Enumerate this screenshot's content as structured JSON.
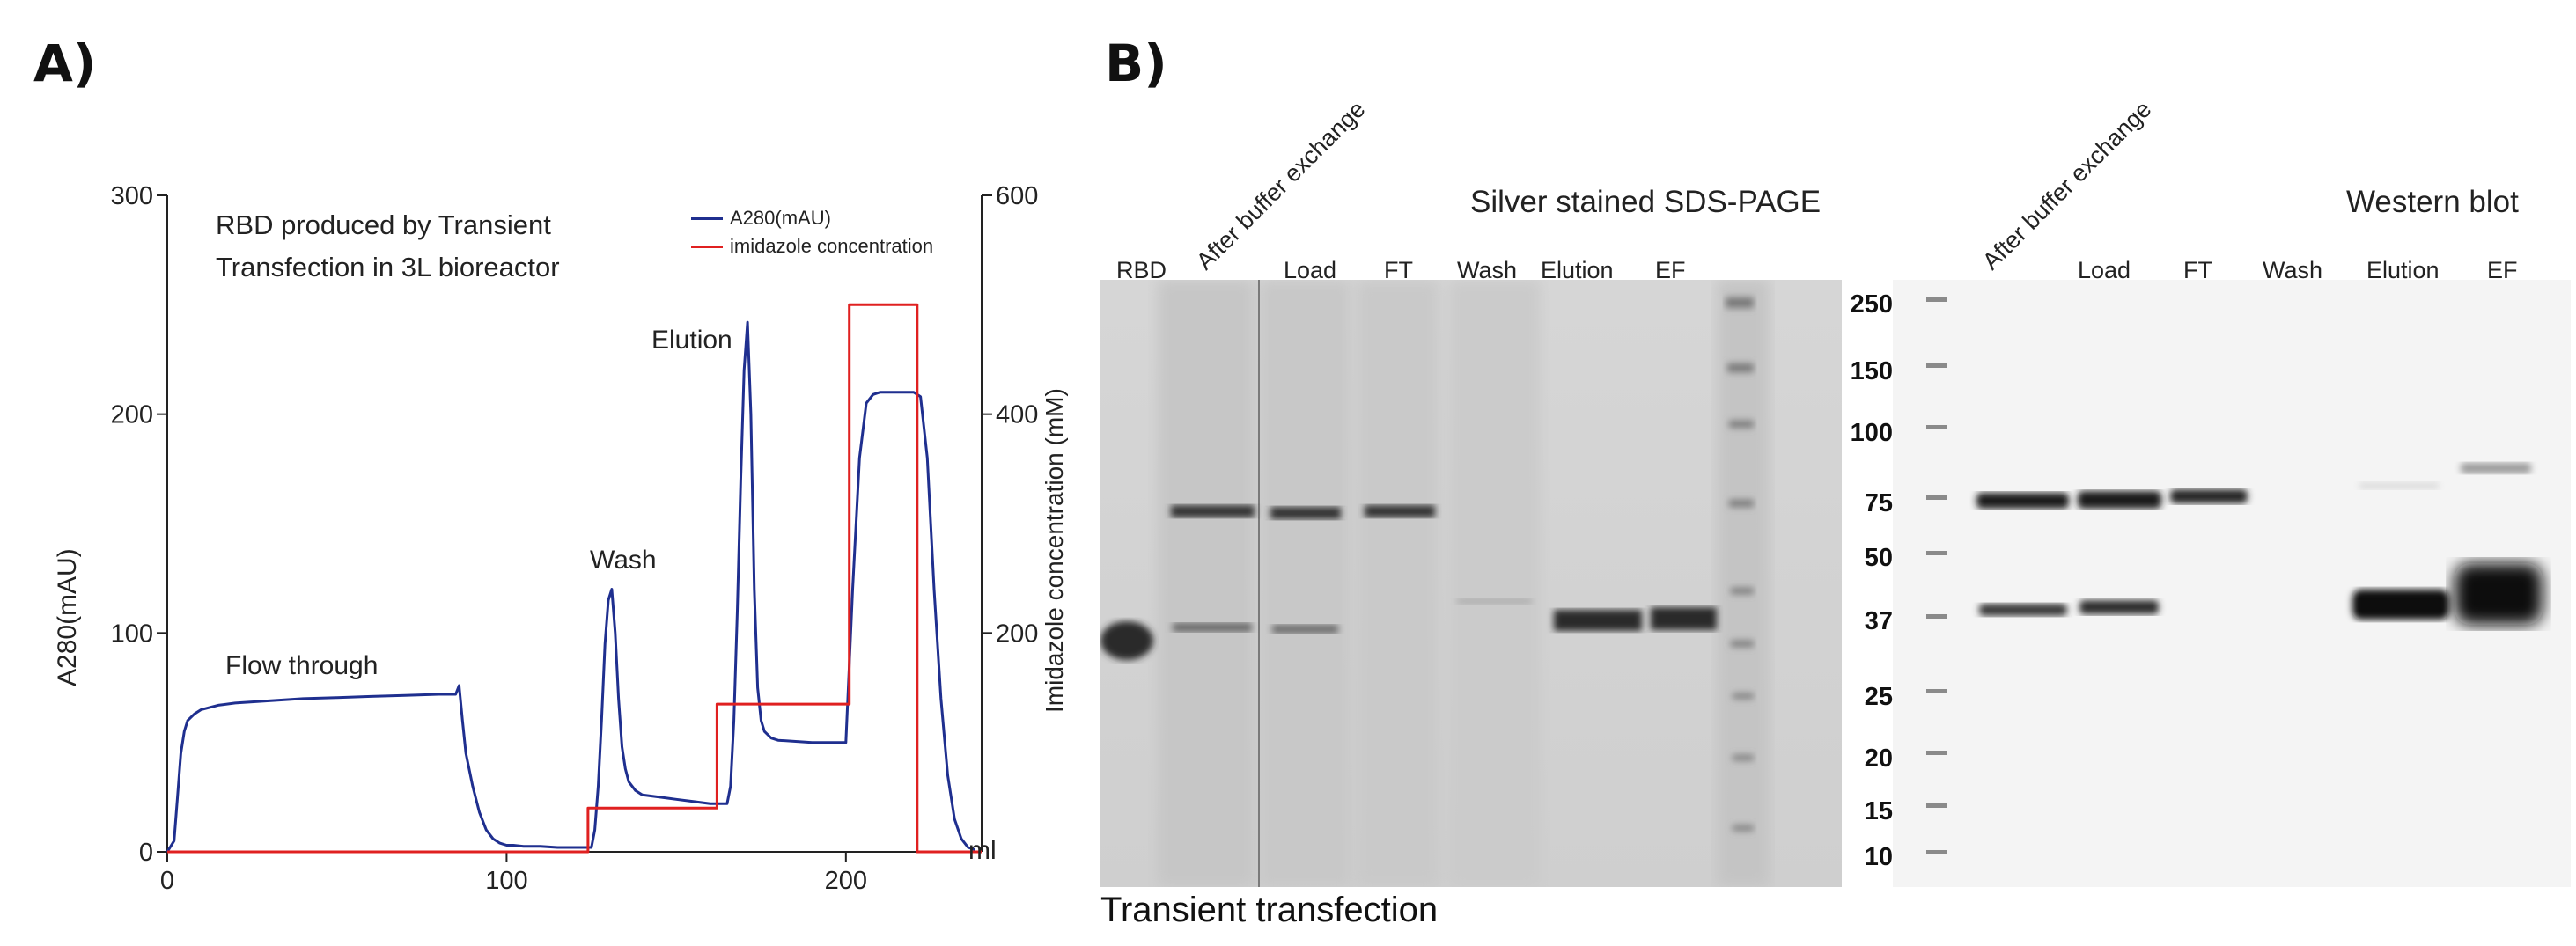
{
  "panelA": {
    "letter": "A)",
    "note_line1": "RBD produced by Transient",
    "note_line2": "Transfection in 3L bioreactor",
    "annotations": {
      "flow_through": "Flow through",
      "wash": "Wash",
      "elution": "Elution"
    }
  },
  "chart_data": {
    "type": "line",
    "xlabel": "ml",
    "ylabel_left": "A280(mAU)",
    "ylabel_right": "Imidazole concentration (mM)",
    "xlim": [
      0,
      240
    ],
    "ylim_left": [
      0,
      300
    ],
    "ylim_right": [
      0,
      600
    ],
    "xticks": [
      0,
      100,
      200
    ],
    "yticks_left": [
      0,
      100,
      200,
      300
    ],
    "yticks_right": [
      200,
      400,
      600
    ],
    "legend_position": "top-right",
    "series": [
      {
        "name": "A280(mAU)",
        "axis": "left",
        "color": "#1f2f8f",
        "x": [
          0,
          2,
          3,
          4,
          5,
          6,
          8,
          10,
          15,
          20,
          30,
          40,
          50,
          60,
          70,
          80,
          85,
          86,
          87,
          88,
          90,
          92,
          94,
          96,
          98,
          100,
          102,
          105,
          110,
          115,
          120,
          125,
          126,
          127,
          128,
          129,
          130,
          131,
          132,
          133,
          134,
          135,
          136,
          138,
          140,
          145,
          150,
          155,
          160,
          165,
          166,
          167,
          168,
          169,
          170,
          171,
          172,
          173,
          174,
          175,
          176,
          178,
          180,
          190,
          200,
          202,
          204,
          206,
          208,
          210,
          212,
          215,
          220,
          222,
          224,
          226,
          228,
          230,
          232,
          234,
          236,
          238
        ],
        "y": [
          0,
          5,
          25,
          45,
          55,
          60,
          63,
          65,
          67,
          68,
          69,
          70,
          70.5,
          71,
          71.5,
          72,
          72,
          76,
          60,
          45,
          30,
          18,
          10,
          6,
          4,
          3,
          3,
          2.5,
          2.5,
          2,
          2,
          2,
          10,
          30,
          60,
          95,
          115,
          120,
          100,
          70,
          48,
          38,
          32,
          28,
          26,
          25,
          24,
          23,
          22,
          22,
          30,
          60,
          110,
          170,
          220,
          242,
          200,
          120,
          75,
          60,
          55,
          52,
          51,
          50,
          50,
          120,
          180,
          205,
          209,
          210,
          210,
          210,
          210,
          208,
          180,
          120,
          70,
          35,
          15,
          6,
          2,
          1
        ]
      },
      {
        "name": "imidazole concentration",
        "axis": "right",
        "color": "#e02020",
        "x": [
          0,
          124,
          124,
          162,
          162,
          201,
          201,
          221,
          221,
          240
        ],
        "y": [
          0,
          0,
          40,
          40,
          135,
          135,
          500,
          500,
          0,
          0
        ]
      }
    ]
  },
  "panelB": {
    "letter": "B)",
    "caption": "Transient transfection",
    "silver": {
      "title": "Silver stained SDS-PAGE",
      "lanes": [
        "RBD",
        "Load",
        "FT",
        "Wash",
        "Elution",
        "EF"
      ],
      "rotated_label": "After buffer exchange"
    },
    "western": {
      "title": "Western blot",
      "lanes": [
        "Load",
        "FT",
        "Wash",
        "Elution",
        "EF"
      ],
      "rotated_label": "After buffer exchange",
      "mw_markers": [
        "250",
        "150",
        "100",
        "75",
        "50",
        "37",
        "25",
        "20",
        "15",
        "10"
      ]
    }
  }
}
